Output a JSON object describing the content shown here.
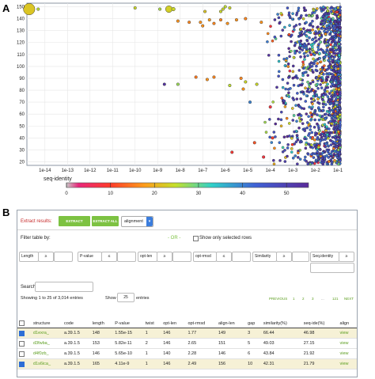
{
  "panel_a_label": "A",
  "panel_b_label": "B",
  "chart_data": {
    "type": "scatter",
    "x_ticks": [
      "1e-14",
      "1e-13",
      "1e-12",
      "1e-11",
      "1e-10",
      "1e-9",
      "1e-8",
      "1e-7",
      "1e-6",
      "1e-5",
      "1e-4",
      "1e-3",
      "1e-2",
      "1e-1"
    ],
    "y_ticks": [
      "20",
      "30",
      "40",
      "50",
      "60",
      "70",
      "80",
      "90",
      "100",
      "110",
      "120",
      "130",
      "140",
      "150"
    ],
    "xlim_log10": [
      -14.8,
      -0.9
    ],
    "ylim": [
      17,
      153
    ],
    "colorbar": {
      "label": "seq-identity",
      "ticks": [
        "0",
        "10",
        "20",
        "30",
        "40",
        "50"
      ],
      "range": [
        0,
        55
      ]
    },
    "points": [
      {
        "x": -14.7,
        "y": 148,
        "c": 22,
        "s": 7
      },
      {
        "x": -14.3,
        "y": 148,
        "c": 25,
        "s": 1.5
      },
      {
        "x": -10.0,
        "y": 149,
        "c": 24,
        "s": 1.5
      },
      {
        "x": -8.9,
        "y": 148,
        "c": 26,
        "s": 1.5
      },
      {
        "x": -8.5,
        "y": 148,
        "c": 23,
        "s": 4
      },
      {
        "x": -8.3,
        "y": 148,
        "c": 24,
        "s": 2
      },
      {
        "x": -6.9,
        "y": 146,
        "c": 22,
        "s": 1.5
      },
      {
        "x": -6.2,
        "y": 146,
        "c": 24,
        "s": 1.5
      },
      {
        "x": -6.1,
        "y": 148,
        "c": 24,
        "s": 1.5
      },
      {
        "x": -6.0,
        "y": 150,
        "c": 25,
        "s": 1.5
      },
      {
        "x": -5.8,
        "y": 149,
        "c": 24,
        "s": 1.5
      },
      {
        "x": -8.1,
        "y": 138,
        "c": 17,
        "s": 1.5
      },
      {
        "x": -7.6,
        "y": 137,
        "c": 16,
        "s": 1.5
      },
      {
        "x": -7.1,
        "y": 137,
        "c": 17,
        "s": 1.5
      },
      {
        "x": -6.7,
        "y": 139,
        "c": 18,
        "s": 1.5
      },
      {
        "x": -6.5,
        "y": 136,
        "c": 16,
        "s": 1.5
      },
      {
        "x": -6.2,
        "y": 139,
        "c": 16,
        "s": 1.5
      },
      {
        "x": -5.9,
        "y": 136,
        "c": 17,
        "s": 1.5
      },
      {
        "x": -5.5,
        "y": 139,
        "c": 17,
        "s": 1.5
      },
      {
        "x": -5.1,
        "y": 140,
        "c": 16,
        "s": 1.5
      },
      {
        "x": -4.4,
        "y": 137,
        "c": 17,
        "s": 1.5
      },
      {
        "x": -7.0,
        "y": 134,
        "c": 17,
        "s": 1.5
      },
      {
        "x": -7.3,
        "y": 91,
        "c": 15,
        "s": 1.5
      },
      {
        "x": -6.8,
        "y": 89,
        "c": 17,
        "s": 1.5
      },
      {
        "x": -6.5,
        "y": 91,
        "c": 16,
        "s": 1.5
      },
      {
        "x": -8.7,
        "y": 85,
        "c": 53,
        "s": 1.5
      },
      {
        "x": -8.1,
        "y": 85,
        "c": 27,
        "s": 1.5
      },
      {
        "x": -5.8,
        "y": 84,
        "c": 25,
        "s": 1.5
      },
      {
        "x": -5.3,
        "y": 90,
        "c": 16,
        "s": 1.5
      },
      {
        "x": -5.1,
        "y": 87,
        "c": 24,
        "s": 1.5
      },
      {
        "x": -5.2,
        "y": 81,
        "c": 17,
        "s": 1.5
      },
      {
        "x": -4.6,
        "y": 85,
        "c": 24,
        "s": 1.5
      },
      {
        "x": -4.9,
        "y": 70,
        "c": 40,
        "s": 1.5
      },
      {
        "x": -4.0,
        "y": 66,
        "c": 8,
        "s": 1.5
      },
      {
        "x": -3.9,
        "y": 40,
        "c": 10,
        "s": 1.5
      },
      {
        "x": -4.7,
        "y": 36,
        "c": 12,
        "s": 1.5
      },
      {
        "x": -5.7,
        "y": 28,
        "c": 9,
        "s": 1.5
      },
      {
        "x": -4.3,
        "y": 24,
        "c": 8,
        "s": 1.5
      }
    ]
  },
  "extract": {
    "label": "Extract results:",
    "btn_selected": "EXTRACT SELECTED",
    "btn_all": "EXTRACT ALL",
    "dropdown_value": "alignment"
  },
  "filter": {
    "title": "Filter table by:",
    "or_text": "- OR -",
    "only_selected": "Show only selected rows",
    "fields": [
      {
        "name": "Length",
        "op": "≥"
      },
      {
        "name": "P-value",
        "op": "≤"
      },
      {
        "name": "opt-len",
        "op": "≥"
      },
      {
        "name": "opt-rmsd",
        "op": "≤"
      },
      {
        "name": "Similarity",
        "op": "≥"
      },
      {
        "name": "Seq.identity",
        "op": "≥"
      }
    ]
  },
  "search_label": "Search:",
  "showing": "Showing 1 to 25 of 3,014 entries",
  "show_label": "Show",
  "show_value": "25",
  "entries_label": "entries",
  "pagination": [
    "PREVIOUS",
    "1",
    "2",
    "3",
    "...",
    "121",
    "NEXT"
  ],
  "table": {
    "headers": [
      "structure",
      "code",
      "length",
      "P-value",
      "twist",
      "opt-len",
      "opt-rmsd",
      "align-len",
      "gap",
      "similarity(%)",
      "seq-ide(%)",
      "align"
    ],
    "rows": [
      {
        "checked": true,
        "structure": "d1exra_",
        "code": "a.39.1.5",
        "length": "148",
        "pvalue": "1.55e-15",
        "twist": "1",
        "optlen": "146",
        "rmsd": "1.77",
        "alignlen": "149",
        "gap": "3",
        "sim": "66.44",
        "seqide": "46.98",
        "align": "view"
      },
      {
        "checked": false,
        "structure": "d3fwba_",
        "code": "a.39.1.5",
        "length": "153",
        "pvalue": "5.82e-11",
        "twist": "2",
        "optlen": "146",
        "rmsd": "2.65",
        "alignlen": "151",
        "gap": "5",
        "sim": "49.03",
        "seqide": "27.15",
        "align": "view"
      },
      {
        "checked": false,
        "structure": "d4f0zb_",
        "code": "a.39.1.5",
        "length": "146",
        "pvalue": "5.65e-10",
        "twist": "1",
        "optlen": "140",
        "rmsd": "2.28",
        "alignlen": "146",
        "gap": "6",
        "sim": "43.84",
        "seqide": "21.92",
        "align": "view"
      },
      {
        "checked": true,
        "structure": "d1s6ica_",
        "code": "a.39.1.5",
        "length": "165",
        "pvalue": "4.11e-9",
        "twist": "1",
        "optlen": "146",
        "rmsd": "2.49",
        "alignlen": "156",
        "gap": "10",
        "sim": "42.31",
        "seqide": "21.79",
        "align": "view"
      }
    ]
  }
}
